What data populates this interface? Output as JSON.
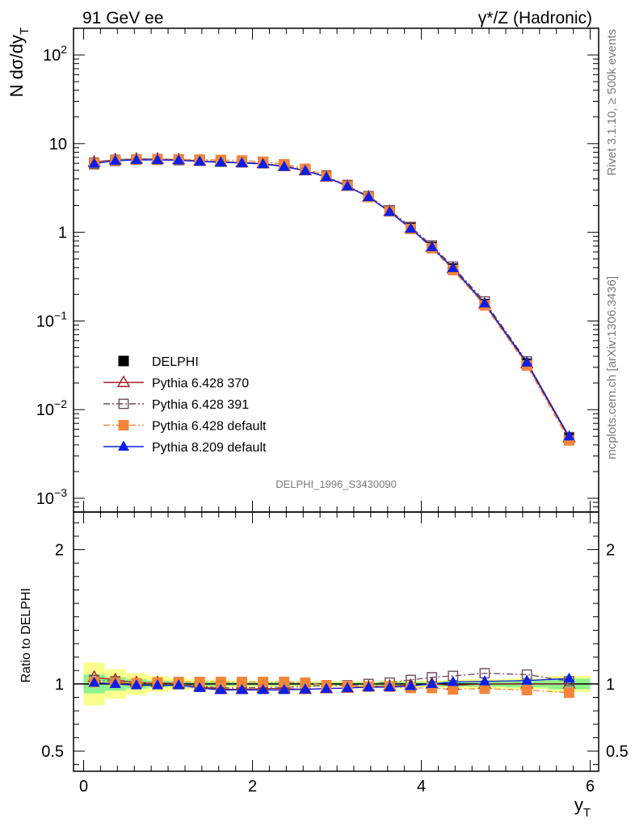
{
  "header": {
    "left_title": "91 GeV ee",
    "right_title": "γ*/Z (Hadronic)"
  },
  "side_text": {
    "upper": "Rivet 3.1.10, ≥ 500k events",
    "lower": "mcplots.cern.ch [arXiv:1306.3436]"
  },
  "watermark": "DELPHI_1996_S3430090",
  "chart_data": [
    {
      "type": "line",
      "panel": "main",
      "ylabel": "N dσ/dy_T",
      "yscale": "log",
      "ylim": [
        0.0007,
        200
      ],
      "xlim": [
        -0.12,
        6.1
      ],
      "yticks": [
        {
          "value": 0.001,
          "label": "10^-3"
        },
        {
          "value": 0.01,
          "label": "10^-2"
        },
        {
          "value": 0.1,
          "label": "10^-1"
        },
        {
          "value": 1,
          "label": "1"
        },
        {
          "value": 10,
          "label": "10"
        },
        {
          "value": 100,
          "label": "10^2"
        }
      ],
      "x": [
        0.125,
        0.375,
        0.625,
        0.875,
        1.125,
        1.375,
        1.625,
        1.875,
        2.125,
        2.375,
        2.625,
        2.875,
        3.125,
        3.375,
        3.625,
        3.875,
        4.125,
        4.375,
        4.75,
        5.25,
        5.75
      ],
      "series": [
        {
          "name": "DELPHI",
          "color": "#000000",
          "marker": "square-filled",
          "line": "none",
          "values": [
            5.9,
            6.4,
            6.6,
            6.6,
            6.55,
            6.5,
            6.45,
            6.35,
            6.15,
            5.75,
            5.15,
            4.35,
            3.4,
            2.55,
            1.75,
            1.12,
            0.68,
            0.39,
            0.155,
            0.033,
            0.0048
          ]
        },
        {
          "name": "Pythia 6.428 370",
          "color": "#9e1f24",
          "marker": "triangle-open",
          "line": "solid",
          "values": [
            6.2,
            6.6,
            6.7,
            6.7,
            6.6,
            6.35,
            6.2,
            6.1,
            5.95,
            5.55,
            4.95,
            4.2,
            3.3,
            2.5,
            1.72,
            1.11,
            0.68,
            0.39,
            0.155,
            0.033,
            0.0048
          ]
        },
        {
          "name": "Pythia 6.428 391",
          "color": "#6e4a5a",
          "marker": "square-open",
          "line": "dashdot",
          "values": [
            6.1,
            6.55,
            6.65,
            6.7,
            6.6,
            6.4,
            6.25,
            6.15,
            6.0,
            5.6,
            5.05,
            4.3,
            3.35,
            2.55,
            1.77,
            1.15,
            0.71,
            0.41,
            0.166,
            0.035,
            0.0049
          ]
        },
        {
          "name": "Pythia 6.428 default",
          "color": "#f3853a",
          "marker": "square-filled",
          "line": "dashdot",
          "values": [
            6.0,
            6.45,
            6.6,
            6.65,
            6.65,
            6.6,
            6.55,
            6.45,
            6.25,
            5.85,
            5.2,
            4.3,
            3.35,
            2.5,
            1.72,
            1.09,
            0.66,
            0.375,
            0.15,
            0.0315,
            0.0045
          ]
        },
        {
          "name": "Pythia 8.209 default",
          "color": "#0b1fe6",
          "marker": "triangle-filled",
          "line": "solid",
          "values": [
            5.95,
            6.4,
            6.55,
            6.55,
            6.5,
            6.3,
            6.15,
            6.05,
            5.9,
            5.5,
            4.95,
            4.2,
            3.3,
            2.5,
            1.7,
            1.1,
            0.68,
            0.395,
            0.158,
            0.034,
            0.005
          ]
        }
      ],
      "legend": {
        "position": "lower-left"
      }
    },
    {
      "type": "line",
      "panel": "ratio",
      "xlabel": "y_T",
      "ylabel": "Ratio to DELPHI",
      "ylim": [
        0.35,
        2.28
      ],
      "xlim": [
        -0.12,
        6.1
      ],
      "xticks": [
        {
          "value": 0,
          "label": "0"
        },
        {
          "value": 2,
          "label": "2"
        },
        {
          "value": 4,
          "label": "4"
        },
        {
          "value": 6,
          "label": "6"
        }
      ],
      "yticks": [
        {
          "value": 0.5,
          "label": "0.5"
        },
        {
          "value": 1,
          "label": "1"
        },
        {
          "value": 2,
          "label": "2"
        }
      ],
      "bins": [
        [
          0,
          0.25
        ],
        [
          0.25,
          0.5
        ],
        [
          0.5,
          0.75
        ],
        [
          0.75,
          1.0
        ],
        [
          1.0,
          1.25
        ],
        [
          1.25,
          1.5
        ],
        [
          1.5,
          1.75
        ],
        [
          1.75,
          2.0
        ],
        [
          2.0,
          2.25
        ],
        [
          2.25,
          2.5
        ],
        [
          2.5,
          2.75
        ],
        [
          2.75,
          3.0
        ],
        [
          3.0,
          3.25
        ],
        [
          3.25,
          3.5
        ],
        [
          3.5,
          3.75
        ],
        [
          3.75,
          4.0
        ],
        [
          4.0,
          4.25
        ],
        [
          4.25,
          4.5
        ],
        [
          4.5,
          5.0
        ],
        [
          5.0,
          5.5
        ],
        [
          5.5,
          6.0
        ]
      ],
      "band_stat_half_width": [
        0.07,
        0.05,
        0.035,
        0.025,
        0.02,
        0.018,
        0.015,
        0.012,
        0.012,
        0.012,
        0.012,
        0.012,
        0.012,
        0.012,
        0.015,
        0.015,
        0.015,
        0.02,
        0.02,
        0.025,
        0.04
      ],
      "band_total_half_width": [
        0.16,
        0.11,
        0.08,
        0.06,
        0.045,
        0.035,
        0.03,
        0.025,
        0.022,
        0.02,
        0.02,
        0.02,
        0.02,
        0.02,
        0.025,
        0.025,
        0.025,
        0.03,
        0.035,
        0.04,
        0.06
      ],
      "series": [
        {
          "name": "Pythia 6.428 370",
          "color": "#9e1f24",
          "marker": "triangle-open",
          "line": "solid",
          "values": [
            1.05,
            1.03,
            1.01,
            1.01,
            1.0,
            0.98,
            0.96,
            0.96,
            0.965,
            0.965,
            0.96,
            0.965,
            0.97,
            0.98,
            0.985,
            0.99,
            1.0,
            0.99,
            1.0,
            1.0,
            1.0
          ]
        },
        {
          "name": "Pythia 6.428 391",
          "color": "#6e4a5a",
          "marker": "square-open",
          "line": "dashdot",
          "values": [
            1.03,
            1.02,
            1.0,
            1.01,
            1.0,
            0.985,
            0.97,
            0.97,
            0.975,
            0.975,
            0.98,
            0.99,
            0.99,
            1.0,
            1.01,
            1.03,
            1.05,
            1.06,
            1.08,
            1.07,
            1.02
          ]
        },
        {
          "name": "Pythia 6.428 default",
          "color": "#f3853a",
          "marker": "square-filled",
          "line": "dashdot",
          "values": [
            1.015,
            1.01,
            1.005,
            1.01,
            1.015,
            1.015,
            1.015,
            1.015,
            1.015,
            1.015,
            1.01,
            0.99,
            0.985,
            0.98,
            0.98,
            0.97,
            0.97,
            0.96,
            0.965,
            0.955,
            0.935
          ]
        },
        {
          "name": "Pythia 8.209 default",
          "color": "#0b1fe6",
          "marker": "triangle-filled",
          "line": "solid",
          "values": [
            1.01,
            1.0,
            0.99,
            0.99,
            0.99,
            0.97,
            0.955,
            0.955,
            0.955,
            0.955,
            0.96,
            0.965,
            0.97,
            0.975,
            0.975,
            0.985,
            1.0,
            1.015,
            1.02,
            1.025,
            1.04
          ]
        }
      ]
    }
  ]
}
